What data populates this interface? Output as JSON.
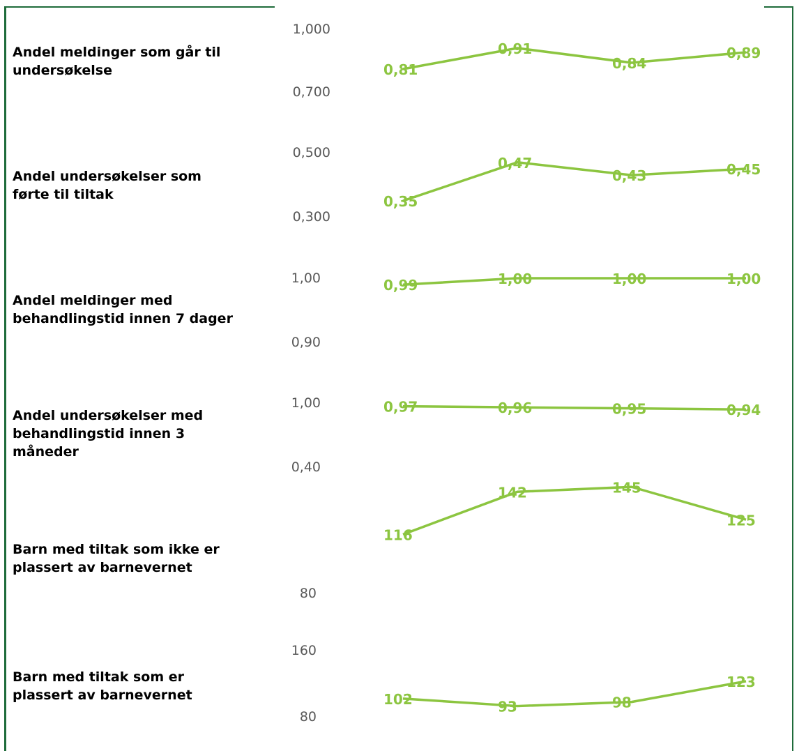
{
  "chart_data": [
    {
      "type": "line",
      "title": "Andel meldinger som går til undersøkelse",
      "ylim": [
        0.7,
        1.0
      ],
      "y_ticks": [
        "1,000",
        "0,700"
      ],
      "values": [
        0.81,
        0.91,
        0.84,
        0.89
      ],
      "value_labels": [
        "0,81",
        "0,91",
        "0,84",
        "0,89"
      ]
    },
    {
      "type": "line",
      "title": "Andel undersøkelser som førte til tiltak",
      "ylim": [
        0.3,
        0.5
      ],
      "y_ticks": [
        "0,500",
        "0,300"
      ],
      "values": [
        0.35,
        0.47,
        0.43,
        0.45
      ],
      "value_labels": [
        "0,35",
        "0,47",
        "0,43",
        "0,45"
      ]
    },
    {
      "type": "line",
      "title": "Andel meldinger med behandlingstid innen 7 dager",
      "ylim": [
        0.9,
        1.0
      ],
      "y_ticks": [
        "1,00",
        "0,90"
      ],
      "values": [
        0.99,
        1.0,
        1.0,
        1.0
      ],
      "value_labels": [
        "0,99",
        "1,00",
        "1,00",
        "1,00"
      ]
    },
    {
      "type": "line",
      "title": "Andel undersøkelser med behandlingstid innen 3 måneder",
      "ylim": [
        0.4,
        1.0
      ],
      "y_ticks": [
        "1,00",
        "0,40"
      ],
      "values": [
        0.97,
        0.96,
        0.95,
        0.94
      ],
      "value_labels": [
        "0,97",
        "0,96",
        "0,95",
        "0,94"
      ]
    },
    {
      "type": "line",
      "title": "Barn med tiltak som ikke er plassert av barnevernet",
      "ylim": [
        80,
        160
      ],
      "y_ticks": [
        "",
        "80"
      ],
      "values": [
        116,
        142,
        145,
        125
      ],
      "value_labels": [
        "116",
        "142",
        "145",
        "125"
      ]
    },
    {
      "type": "line",
      "title": "Barn med tiltak som er plassert av barnevernet",
      "ylim": [
        80,
        160
      ],
      "y_ticks": [
        "160",
        "80"
      ],
      "values": [
        102,
        93,
        98,
        123
      ],
      "value_labels": [
        "102",
        "93",
        "98",
        "123"
      ]
    }
  ],
  "colors": {
    "line": "#8cc540",
    "frame": "#1e6b3a",
    "tick_text": "#595959"
  },
  "labels": [
    "Andel meldinger som går til\nundersøkelse",
    "Andel undersøkelser som\nførte til tiltak",
    "Andel meldinger med\nbehandlingstid innen 7 dager",
    "Andel undersøkelser med\nbehandlingstid innen 3\nmåneder",
    "Barn med tiltak som ikke er\nplassert av barnevernet",
    "Barn med tiltak som er\nplassert av barnevernet"
  ]
}
